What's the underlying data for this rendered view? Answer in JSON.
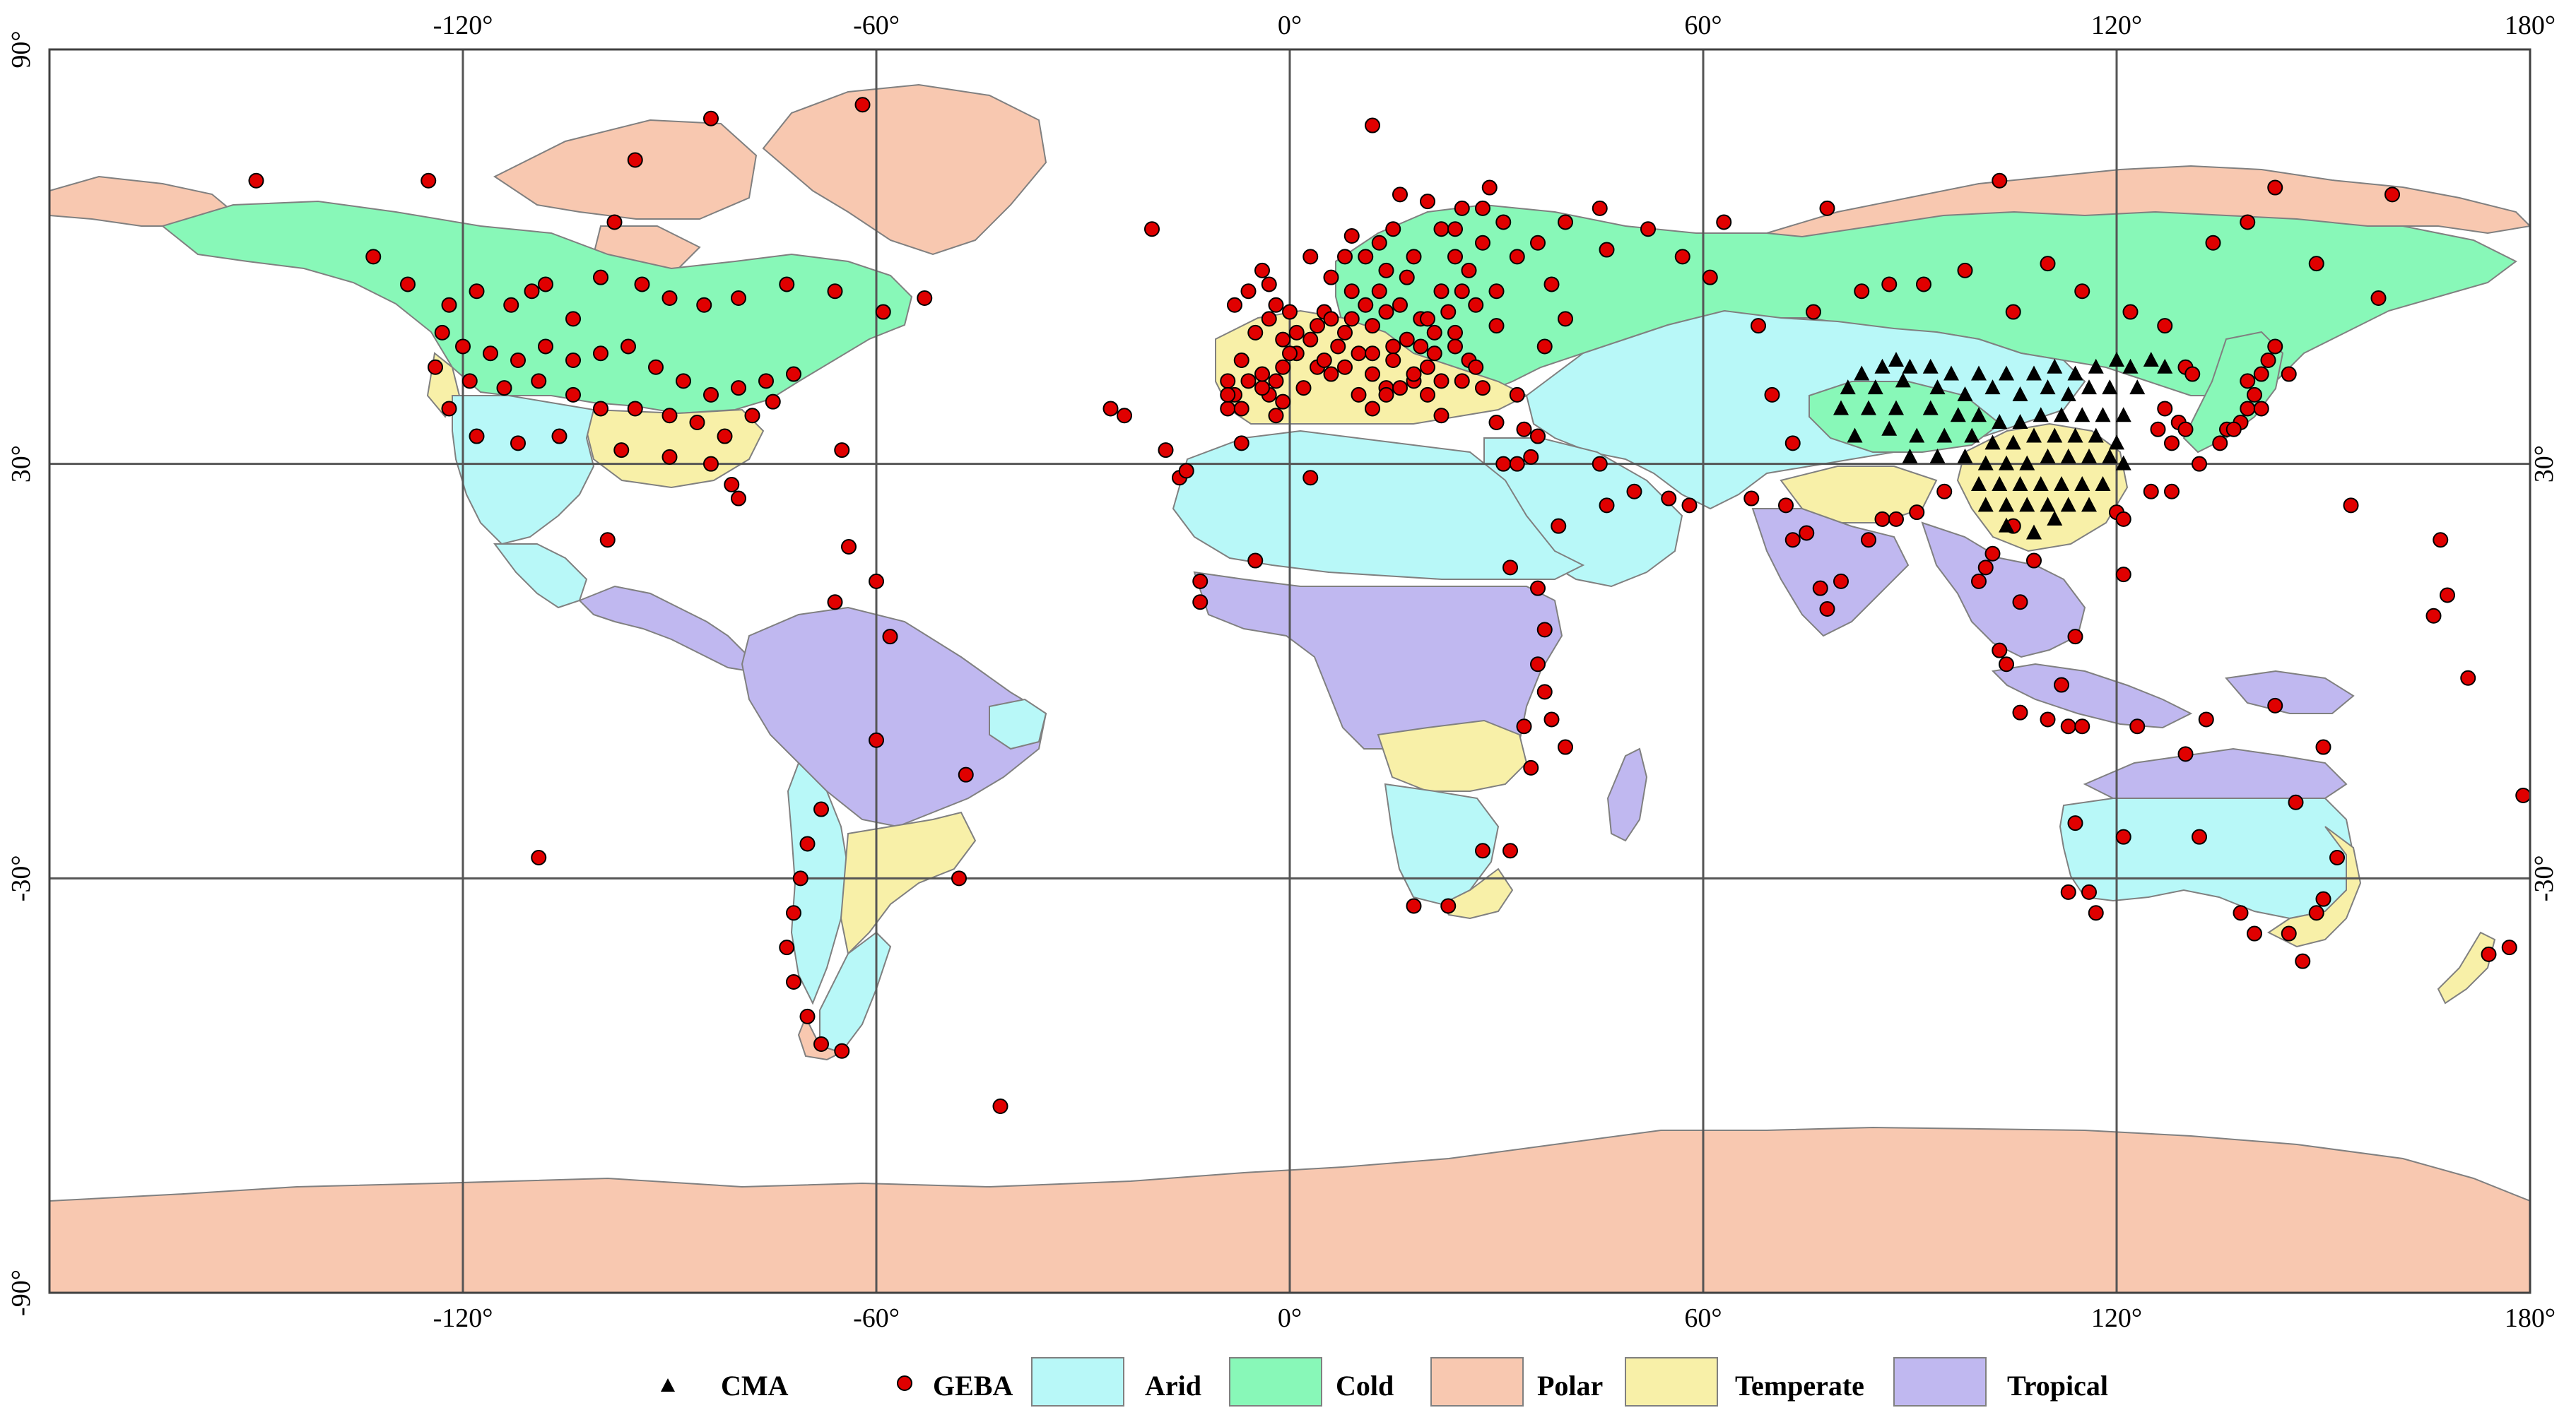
{
  "axes": {
    "top_ticks": [
      "-120°",
      "-60°",
      "0°",
      "60°",
      "120°",
      "180°"
    ],
    "bottom_ticks": [
      "-120°",
      "-60°",
      "0°",
      "60°",
      "120°",
      "180°"
    ],
    "left_ticks": [
      "90°",
      "30°",
      "-30°",
      "-90°"
    ],
    "right_ticks": [
      "30°",
      "-30°"
    ]
  },
  "legend": {
    "cma": "CMA",
    "geba": "GEBA",
    "arid": "Arid",
    "cold": "Cold",
    "polar": "Polar",
    "temperate": "Temperate",
    "tropical": "Tropical"
  },
  "colors": {
    "arid": "#b8f8f8",
    "cold": "#88f8b8",
    "polar": "#f8c8b0",
    "temperate": "#f8f0a8",
    "tropical": "#c0b8f0",
    "geba": "#e00000",
    "cma": "#000000",
    "ocean": "#ffffff",
    "grid": "#555555"
  },
  "map_data": {
    "extent": {
      "lon": [
        -180,
        180
      ],
      "lat": [
        -90,
        90
      ]
    },
    "grid_step_deg": 60,
    "cma_stations": [
      [
        83,
        43
      ],
      [
        86,
        44
      ],
      [
        88,
        45
      ],
      [
        90,
        44
      ],
      [
        93,
        44
      ],
      [
        96,
        43
      ],
      [
        100,
        43
      ],
      [
        104,
        43
      ],
      [
        108,
        43
      ],
      [
        111,
        44
      ],
      [
        114,
        43
      ],
      [
        117,
        44
      ],
      [
        120,
        45
      ],
      [
        122,
        44
      ],
      [
        125,
        45
      ],
      [
        127,
        44
      ],
      [
        81,
        41
      ],
      [
        85,
        41
      ],
      [
        89,
        42
      ],
      [
        94,
        41
      ],
      [
        98,
        40
      ],
      [
        102,
        41
      ],
      [
        106,
        40
      ],
      [
        110,
        41
      ],
      [
        113,
        40
      ],
      [
        116,
        41
      ],
      [
        119,
        41
      ],
      [
        123,
        41
      ],
      [
        80,
        38
      ],
      [
        84,
        38
      ],
      [
        88,
        38
      ],
      [
        93,
        38
      ],
      [
        97,
        37
      ],
      [
        100,
        37
      ],
      [
        103,
        36
      ],
      [
        106,
        36
      ],
      [
        109,
        37
      ],
      [
        112,
        37
      ],
      [
        115,
        37
      ],
      [
        118,
        37
      ],
      [
        121,
        37
      ],
      [
        82,
        34
      ],
      [
        87,
        35
      ],
      [
        91,
        34
      ],
      [
        95,
        34
      ],
      [
        99,
        34
      ],
      [
        102,
        33
      ],
      [
        105,
        33
      ],
      [
        108,
        34
      ],
      [
        111,
        34
      ],
      [
        114,
        34
      ],
      [
        117,
        34
      ],
      [
        120,
        33
      ],
      [
        90,
        31
      ],
      [
        94,
        31
      ],
      [
        98,
        31
      ],
      [
        101,
        30
      ],
      [
        104,
        30
      ],
      [
        107,
        30
      ],
      [
        110,
        31
      ],
      [
        113,
        31
      ],
      [
        116,
        31
      ],
      [
        119,
        31
      ],
      [
        121,
        30
      ],
      [
        100,
        27
      ],
      [
        103,
        27
      ],
      [
        106,
        27
      ],
      [
        109,
        27
      ],
      [
        112,
        27
      ],
      [
        115,
        27
      ],
      [
        118,
        27
      ],
      [
        101,
        24
      ],
      [
        104,
        24
      ],
      [
        107,
        24
      ],
      [
        110,
        24
      ],
      [
        113,
        24
      ],
      [
        116,
        24
      ],
      [
        104,
        21
      ],
      [
        108,
        20
      ],
      [
        111,
        22
      ]
    ],
    "geba_stations": [
      [
        -150,
        71
      ],
      [
        -125,
        71
      ],
      [
        -95,
        74
      ],
      [
        -84,
        80
      ],
      [
        -62,
        82
      ],
      [
        -98,
        65
      ],
      [
        -20,
        64
      ],
      [
        12,
        79
      ],
      [
        -133,
        60
      ],
      [
        -128,
        56
      ],
      [
        -122,
        53
      ],
      [
        -118,
        55
      ],
      [
        -113,
        53
      ],
      [
        -108,
        56
      ],
      [
        -104,
        51
      ],
      [
        -110,
        55
      ],
      [
        -100,
        57
      ],
      [
        -94,
        56
      ],
      [
        -90,
        54
      ],
      [
        -85,
        53
      ],
      [
        -80,
        54
      ],
      [
        -73,
        56
      ],
      [
        -66,
        55
      ],
      [
        -59,
        52
      ],
      [
        -53,
        54
      ],
      [
        -123,
        49
      ],
      [
        -120,
        47
      ],
      [
        -116,
        46
      ],
      [
        -112,
        45
      ],
      [
        -108,
        47
      ],
      [
        -104,
        45
      ],
      [
        -100,
        46
      ],
      [
        -96,
        47
      ],
      [
        -92,
        44
      ],
      [
        -88,
        42
      ],
      [
        -84,
        40
      ],
      [
        -80,
        41
      ],
      [
        -76,
        42
      ],
      [
        -72,
        43
      ],
      [
        -124,
        44
      ],
      [
        -119,
        42
      ],
      [
        -114,
        41
      ],
      [
        -109,
        42
      ],
      [
        -104,
        40
      ],
      [
        -100,
        38
      ],
      [
        -95,
        38
      ],
      [
        -90,
        37
      ],
      [
        -86,
        36
      ],
      [
        -82,
        34
      ],
      [
        -78,
        37
      ],
      [
        -75,
        39
      ],
      [
        -122,
        38
      ],
      [
        -118,
        34
      ],
      [
        -112,
        33
      ],
      [
        -106,
        34
      ],
      [
        -97,
        32
      ],
      [
        -90,
        31
      ],
      [
        -84,
        30
      ],
      [
        -81,
        27
      ],
      [
        -80,
        25
      ],
      [
        -99,
        19
      ],
      [
        -65,
        32
      ],
      [
        -60,
        13
      ],
      [
        -58,
        5
      ],
      [
        -66,
        10
      ],
      [
        -64,
        18
      ],
      [
        -47,
        -15
      ],
      [
        -60,
        -10
      ],
      [
        -48,
        -30
      ],
      [
        -68,
        -20
      ],
      [
        -70,
        -25
      ],
      [
        -71,
        -30
      ],
      [
        -72,
        -35
      ],
      [
        -73,
        -40
      ],
      [
        -72,
        -45
      ],
      [
        -70,
        -50
      ],
      [
        -68,
        -54
      ],
      [
        -65,
        -55
      ],
      [
        -109,
        -27
      ],
      [
        -42,
        -63
      ],
      [
        -26,
        38
      ],
      [
        -24,
        37
      ],
      [
        -18,
        32
      ],
      [
        -16,
        28
      ],
      [
        -15,
        29
      ],
      [
        -7,
        33
      ],
      [
        -5,
        16
      ],
      [
        -13,
        13
      ],
      [
        -13,
        10
      ],
      [
        3,
        28
      ],
      [
        28,
        -26
      ],
      [
        18,
        -34
      ],
      [
        23,
        -34
      ],
      [
        32,
        -26
      ],
      [
        35,
        -14
      ],
      [
        34,
        -8
      ],
      [
        37,
        -3
      ],
      [
        36,
        1
      ],
      [
        38,
        -7
      ],
      [
        40,
        -11
      ],
      [
        37,
        6
      ],
      [
        36,
        12
      ],
      [
        32,
        15
      ],
      [
        31,
        30
      ],
      [
        33,
        30
      ],
      [
        35,
        31
      ],
      [
        36,
        34
      ],
      [
        45,
        30
      ],
      [
        50,
        26
      ],
      [
        55,
        25
      ],
      [
        58,
        24
      ],
      [
        46,
        24
      ],
      [
        39,
        21
      ],
      [
        67,
        25
      ],
      [
        73,
        33
      ],
      [
        75,
        20
      ],
      [
        72,
        24
      ],
      [
        73,
        19
      ],
      [
        77,
        12
      ],
      [
        78,
        9
      ],
      [
        80,
        13
      ],
      [
        84,
        19
      ],
      [
        86,
        22
      ],
      [
        88,
        22
      ],
      [
        91,
        23
      ],
      [
        95,
        26
      ],
      [
        103,
        3
      ],
      [
        104,
        1
      ],
      [
        106,
        -6
      ],
      [
        110,
        -7
      ],
      [
        113,
        -8
      ],
      [
        115,
        -8
      ],
      [
        112,
        -2
      ],
      [
        114,
        5
      ],
      [
        106,
        10
      ],
      [
        100,
        13
      ],
      [
        101,
        15
      ],
      [
        102,
        17
      ],
      [
        105,
        21
      ],
      [
        108,
        16
      ],
      [
        121,
        14
      ],
      [
        120,
        23
      ],
      [
        123,
        -8
      ],
      [
        121,
        -24
      ],
      [
        130,
        -12
      ],
      [
        114,
        -22
      ],
      [
        113,
        -32
      ],
      [
        116,
        -32
      ],
      [
        117,
        -35
      ],
      [
        138,
        -35
      ],
      [
        140,
        -38
      ],
      [
        145,
        -38
      ],
      [
        147,
        -42
      ],
      [
        150,
        -33
      ],
      [
        149,
        -35
      ],
      [
        152,
        -27
      ],
      [
        146,
        -19
      ],
      [
        132,
        -24
      ],
      [
        121,
        22
      ],
      [
        125,
        26
      ],
      [
        128,
        26
      ],
      [
        132,
        30
      ],
      [
        135,
        33
      ],
      [
        136,
        35
      ],
      [
        138,
        36
      ],
      [
        139,
        38
      ],
      [
        140,
        40
      ],
      [
        141,
        43
      ],
      [
        142,
        45
      ],
      [
        143,
        47
      ],
      [
        145,
        43
      ],
      [
        127,
        38
      ],
      [
        129,
        36
      ],
      [
        126,
        35
      ],
      [
        128,
        33
      ],
      [
        130,
        35
      ],
      [
        137,
        35
      ],
      [
        141,
        38
      ],
      [
        139,
        42
      ],
      [
        154,
        24
      ],
      [
        166,
        8
      ],
      [
        167,
        19
      ],
      [
        168,
        11
      ],
      [
        171,
        -1
      ],
      [
        179,
        -18
      ],
      [
        177,
        -40
      ],
      [
        174,
        -41
      ],
      [
        133,
        -7
      ],
      [
        143,
        -5
      ],
      [
        150,
        -11
      ],
      [
        70,
        40
      ],
      [
        68,
        50
      ],
      [
        76,
        52
      ],
      [
        83,
        55
      ],
      [
        87,
        56
      ],
      [
        61,
        57
      ],
      [
        52,
        64
      ],
      [
        46,
        61
      ],
      [
        38,
        56
      ],
      [
        40,
        51
      ],
      [
        37,
        47
      ],
      [
        30,
        50
      ],
      [
        24,
        49
      ],
      [
        20,
        44
      ],
      [
        18,
        42
      ],
      [
        25,
        42
      ],
      [
        28,
        41
      ],
      [
        33,
        40
      ],
      [
        30,
        36
      ],
      [
        34,
        35
      ],
      [
        22,
        37
      ],
      [
        20,
        40
      ],
      [
        14,
        41
      ],
      [
        12,
        43
      ],
      [
        15,
        47
      ],
      [
        10,
        46
      ],
      [
        8,
        49
      ],
      [
        5,
        52
      ],
      [
        0,
        52
      ],
      [
        -3,
        51
      ],
      [
        -6,
        55
      ],
      [
        -4,
        58
      ],
      [
        3,
        60
      ],
      [
        8,
        60
      ],
      [
        13,
        62
      ],
      [
        18,
        60
      ],
      [
        22,
        64
      ],
      [
        24,
        60
      ],
      [
        28,
        62
      ],
      [
        25,
        67
      ],
      [
        20,
        68
      ],
      [
        16,
        69
      ],
      [
        29,
        70
      ],
      [
        33,
        60
      ],
      [
        36,
        62
      ],
      [
        40,
        65
      ],
      [
        45,
        67
      ],
      [
        57,
        60
      ],
      [
        63,
        65
      ],
      [
        78,
        67
      ],
      [
        92,
        56
      ],
      [
        98,
        58
      ],
      [
        105,
        52
      ],
      [
        110,
        59
      ],
      [
        115,
        55
      ],
      [
        122,
        52
      ],
      [
        127,
        50
      ],
      [
        130,
        44
      ],
      [
        131,
        43
      ],
      [
        134,
        62
      ],
      [
        139,
        65
      ],
      [
        143,
        70
      ],
      [
        149,
        59
      ],
      [
        158,
        54
      ],
      [
        160,
        69
      ],
      [
        103,
        71
      ],
      [
        -9,
        38
      ],
      [
        -8,
        40
      ],
      [
        -6,
        42
      ],
      [
        -3,
        40
      ],
      [
        -2,
        37
      ],
      [
        -1,
        39
      ],
      [
        -4,
        41
      ],
      [
        2,
        41
      ],
      [
        4,
        44
      ],
      [
        6,
        43
      ],
      [
        8,
        44
      ],
      [
        10,
        40
      ],
      [
        12,
        38
      ],
      [
        14,
        40
      ],
      [
        16,
        41
      ],
      [
        18,
        43
      ],
      [
        22,
        42
      ],
      [
        7,
        47
      ],
      [
        1,
        46
      ],
      [
        -1,
        48
      ],
      [
        3,
        48
      ],
      [
        5,
        45
      ],
      [
        9,
        51
      ],
      [
        12,
        50
      ],
      [
        14,
        52
      ],
      [
        16,
        53
      ],
      [
        19,
        51
      ],
      [
        21,
        49
      ],
      [
        23,
        52
      ],
      [
        11,
        53
      ],
      [
        13,
        55
      ],
      [
        9,
        55
      ],
      [
        6,
        57
      ],
      [
        -2,
        53
      ],
      [
        -8,
        53
      ],
      [
        -3,
        56
      ],
      [
        -7,
        45
      ],
      [
        -4,
        43
      ],
      [
        -1,
        44
      ],
      [
        1,
        49
      ],
      [
        4,
        50
      ],
      [
        6,
        51
      ],
      [
        -5,
        49
      ],
      [
        0,
        46
      ],
      [
        -9,
        42
      ],
      [
        -7,
        38
      ],
      [
        -9,
        40
      ],
      [
        -2,
        42
      ],
      [
        17,
        48
      ],
      [
        15,
        45
      ],
      [
        12,
        46
      ],
      [
        19,
        47
      ],
      [
        21,
        46
      ],
      [
        26,
        45
      ],
      [
        24,
        47
      ],
      [
        27,
        44
      ],
      [
        20,
        51
      ],
      [
        22,
        55
      ],
      [
        25,
        55
      ],
      [
        27,
        53
      ],
      [
        30,
        55
      ],
      [
        17,
        57
      ],
      [
        14,
        58
      ],
      [
        11,
        60
      ],
      [
        9,
        63
      ],
      [
        15,
        64
      ],
      [
        26,
        58
      ],
      [
        24,
        64
      ],
      [
        28,
        67
      ],
      [
        31,
        65
      ]
    ]
  }
}
